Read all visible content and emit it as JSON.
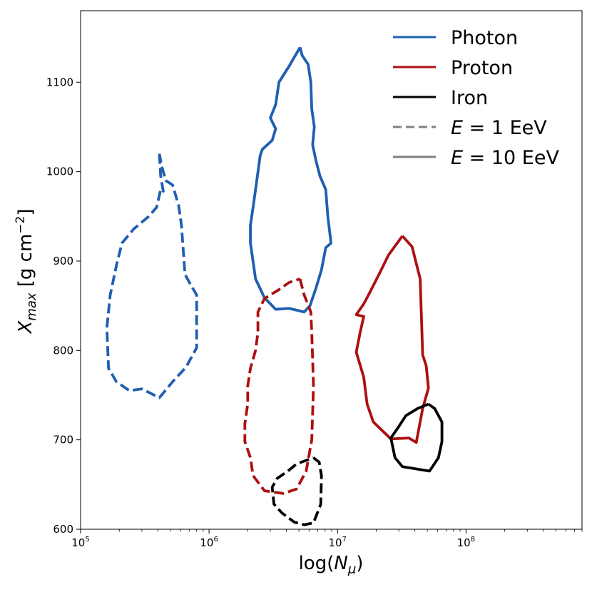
{
  "chart_data": {
    "type": "line",
    "title": "",
    "xlabel": "log(N_μ)",
    "ylabel": "X_max [g cm^-2]",
    "xscale": "log",
    "xlim": [
      100000,
      800000000
    ],
    "ylim": [
      600,
      1180
    ],
    "x_tick_labels": [
      {
        "value": 100000,
        "base": "10",
        "exp": "5"
      },
      {
        "value": 1000000,
        "base": "10",
        "exp": "6"
      },
      {
        "value": 10000000,
        "base": "10",
        "exp": "7"
      },
      {
        "value": 100000000,
        "base": "10",
        "exp": "8"
      }
    ],
    "y_ticks": [
      600,
      700,
      800,
      900,
      1000,
      1100
    ],
    "y_tick_labels": [
      "600",
      "700",
      "800",
      "900",
      "1000",
      "1100"
    ],
    "colors": {
      "Photon": "#1f5fb0",
      "Proton": "#ad1010",
      "Iron": "#000000",
      "legend_style": "#808080"
    },
    "legend": {
      "position": "top-right",
      "entries": [
        {
          "label": "Photon",
          "color": "#1f5fb0",
          "dash": "solid"
        },
        {
          "label": "Proton",
          "color": "#ad1010",
          "dash": "solid"
        },
        {
          "label": "Iron",
          "color": "#000000",
          "dash": "solid"
        },
        {
          "label": "E = 1 EeV",
          "color": "#808080",
          "dash": "dashed"
        },
        {
          "label": "E = 10 EeV",
          "color": "#808080",
          "dash": "solid"
        }
      ]
    },
    "series": [
      {
        "name": "Photon",
        "energy": "E = 1 EeV",
        "dash": "dashed",
        "color": "#1f5fb0",
        "points": [
          [
            410000,
            1020
          ],
          [
            420000,
            995
          ],
          [
            440000,
            978
          ],
          [
            430000,
            980
          ],
          [
            420000,
            980
          ],
          [
            390000,
            960
          ],
          [
            340000,
            950
          ],
          [
            260000,
            936
          ],
          [
            210000,
            920
          ],
          [
            190000,
            895
          ],
          [
            170000,
            862
          ],
          [
            160000,
            825
          ],
          [
            165000,
            780
          ],
          [
            190000,
            765
          ],
          [
            240000,
            755
          ],
          [
            300000,
            757
          ],
          [
            410000,
            747
          ],
          [
            520000,
            765
          ],
          [
            660000,
            781
          ],
          [
            800000,
            803
          ],
          [
            800000,
            862
          ],
          [
            710000,
            875
          ],
          [
            650000,
            885
          ],
          [
            610000,
            940
          ],
          [
            580000,
            962
          ],
          [
            520000,
            985
          ],
          [
            460000,
            990
          ],
          [
            430000,
            1005
          ],
          [
            410000,
            1020
          ]
        ]
      },
      {
        "name": "Photon",
        "energy": "E = 10 EeV",
        "dash": "solid",
        "color": "#1f5fb0",
        "points": [
          [
            5100000,
            1139
          ],
          [
            5300000,
            1130
          ],
          [
            5900000,
            1120
          ],
          [
            6200000,
            1100
          ],
          [
            6300000,
            1070
          ],
          [
            6600000,
            1050
          ],
          [
            6400000,
            1030
          ],
          [
            6800000,
            1012
          ],
          [
            7300000,
            995
          ],
          [
            8100000,
            980
          ],
          [
            8400000,
            950
          ],
          [
            8900000,
            920
          ],
          [
            8100000,
            915
          ],
          [
            7500000,
            890
          ],
          [
            6800000,
            870
          ],
          [
            6100000,
            850
          ],
          [
            5500000,
            843
          ],
          [
            4200000,
            847
          ],
          [
            3300000,
            846
          ],
          [
            2700000,
            859
          ],
          [
            2300000,
            880
          ],
          [
            2100000,
            920
          ],
          [
            2100000,
            940
          ],
          [
            2200000,
            960
          ],
          [
            2300000,
            980
          ],
          [
            2500000,
            1018
          ],
          [
            2600000,
            1025
          ],
          [
            3100000,
            1035
          ],
          [
            3300000,
            1048
          ],
          [
            3000000,
            1060
          ],
          [
            3300000,
            1075
          ],
          [
            3500000,
            1100
          ],
          [
            4200000,
            1118
          ],
          [
            5100000,
            1139
          ]
        ]
      },
      {
        "name": "Proton",
        "energy": "E = 1 EeV",
        "dash": "dashed",
        "color": "#ad1010",
        "points": [
          [
            5100000,
            880
          ],
          [
            5500000,
            862
          ],
          [
            6200000,
            843
          ],
          [
            6300000,
            820
          ],
          [
            6500000,
            760
          ],
          [
            6300000,
            700
          ],
          [
            5700000,
            665
          ],
          [
            4800000,
            645
          ],
          [
            3800000,
            640
          ],
          [
            2700000,
            643
          ],
          [
            2200000,
            660
          ],
          [
            2100000,
            680
          ],
          [
            1900000,
            698
          ],
          [
            1900000,
            718
          ],
          [
            2000000,
            740
          ],
          [
            2000000,
            760
          ],
          [
            2100000,
            780
          ],
          [
            2300000,
            800
          ],
          [
            2400000,
            820
          ],
          [
            2400000,
            843
          ],
          [
            2700000,
            858
          ],
          [
            3500000,
            868
          ],
          [
            4200000,
            876
          ],
          [
            5100000,
            880
          ]
        ]
      },
      {
        "name": "Proton",
        "energy": "E = 10 EeV",
        "dash": "solid",
        "color": "#ad1010",
        "points": [
          [
            32000000,
            928
          ],
          [
            38000000,
            916
          ],
          [
            44000000,
            880
          ],
          [
            46000000,
            795
          ],
          [
            49000000,
            783
          ],
          [
            51000000,
            758
          ],
          [
            46000000,
            735
          ],
          [
            41000000,
            697
          ],
          [
            36000000,
            702
          ],
          [
            26000000,
            701
          ],
          [
            19000000,
            720
          ],
          [
            17000000,
            740
          ],
          [
            16000000,
            770
          ],
          [
            14000000,
            798
          ],
          [
            15000000,
            820
          ],
          [
            16000000,
            838
          ],
          [
            14000000,
            840
          ],
          [
            16000000,
            852
          ],
          [
            18000000,
            866
          ],
          [
            21000000,
            885
          ],
          [
            25000000,
            907
          ],
          [
            32000000,
            928
          ]
        ]
      },
      {
        "name": "Iron",
        "energy": "E = 1 EeV",
        "dash": "dashed",
        "color": "#000000",
        "points": [
          [
            6500000,
            680
          ],
          [
            7200000,
            675
          ],
          [
            7500000,
            660
          ],
          [
            7400000,
            628
          ],
          [
            6500000,
            607
          ],
          [
            5500000,
            605
          ],
          [
            4600000,
            608
          ],
          [
            3700000,
            618
          ],
          [
            3200000,
            628
          ],
          [
            3100000,
            647
          ],
          [
            3400000,
            657
          ],
          [
            4100000,
            665
          ],
          [
            4800000,
            673
          ],
          [
            6500000,
            680
          ]
        ]
      },
      {
        "name": "Iron",
        "energy": "E = 10 EeV",
        "dash": "solid",
        "color": "#000000",
        "points": [
          [
            51000000,
            740
          ],
          [
            57000000,
            735
          ],
          [
            65000000,
            720
          ],
          [
            65000000,
            698
          ],
          [
            61000000,
            680
          ],
          [
            52000000,
            665
          ],
          [
            32000000,
            670
          ],
          [
            28000000,
            680
          ],
          [
            26000000,
            702
          ],
          [
            30000000,
            715
          ],
          [
            34000000,
            727
          ],
          [
            42000000,
            735
          ],
          [
            51000000,
            740
          ]
        ]
      }
    ]
  }
}
